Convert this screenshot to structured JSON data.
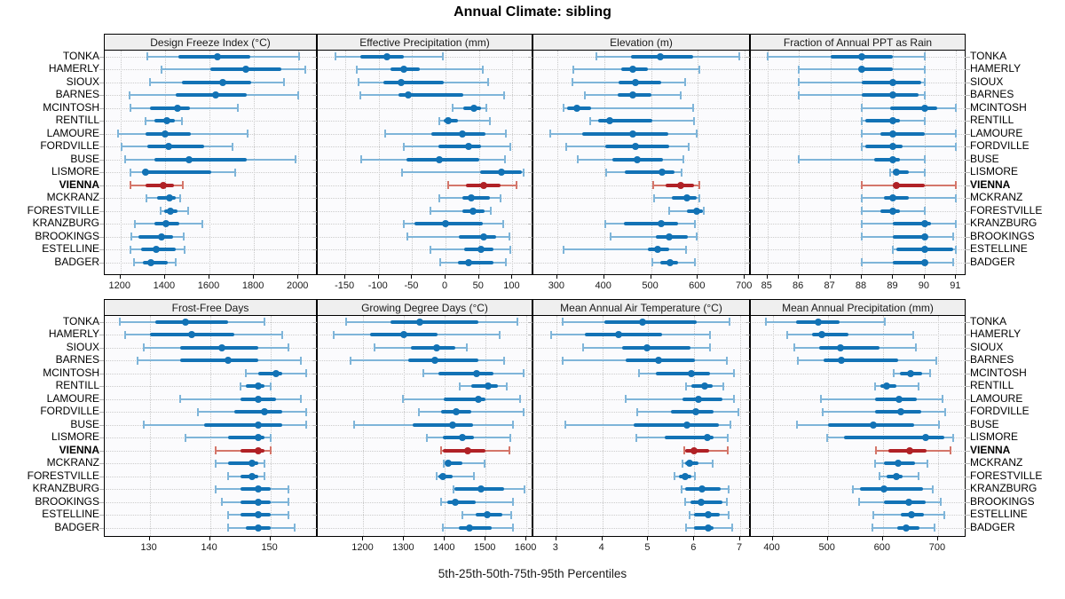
{
  "title": "Annual Climate: sibling",
  "caption": "5th-25th-50th-75th-95th Percentiles",
  "highlight_station": "VIENNA",
  "colors": {
    "blue": "#1272b5",
    "blue_light": "#7fb5d9",
    "red": "#b02126",
    "red_light": "#d4766a",
    "grid": "#c9c9c9",
    "strip_bg": "#efefef",
    "panel_bg": "#fbfbfd",
    "border": "#000000"
  },
  "stations": [
    "TONKA",
    "HAMERLY",
    "SIOUX",
    "BARNES",
    "MCINTOSH",
    "RENTILL",
    "LAMOURE",
    "FORDVILLE",
    "BUSE",
    "LISMORE",
    "VIENNA",
    "MCKRANZ",
    "FORESTVILLE",
    "KRANZBURG",
    "BROOKINGS",
    "ESTELLINE",
    "BADGER"
  ],
  "chart_data": [
    {
      "type": "interval",
      "title": "Design Freeze Index (°C)",
      "grid_row": 0,
      "xlim": [
        1133,
        2083
      ],
      "ticks": [
        1200,
        1400,
        1600,
        1800,
        2000
      ],
      "percentiles": [
        5,
        25,
        50,
        75,
        95
      ],
      "values": [
        [
          1321,
          1459,
          1637,
          1782,
          2005
        ],
        [
          1384,
          1604,
          1762,
          1924,
          2032
        ],
        [
          1332,
          1476,
          1661,
          1788,
          1937
        ],
        [
          1242,
          1450,
          1626,
          1769,
          1999
        ],
        [
          1246,
          1334,
          1457,
          1512,
          1726
        ],
        [
          1314,
          1354,
          1407,
          1446,
          1476
        ],
        [
          1189,
          1314,
          1400,
          1518,
          1772
        ],
        [
          1203,
          1321,
          1417,
          1578,
          1705
        ],
        [
          1222,
          1351,
          1509,
          1769,
          1986
        ],
        [
          1243,
          1295,
          1312,
          1608,
          1717
        ],
        [
          1246,
          1312,
          1391,
          1441,
          1480
        ],
        [
          1315,
          1364,
          1420,
          1450,
          1470
        ],
        [
          1380,
          1397,
          1426,
          1457,
          1503
        ],
        [
          1266,
          1351,
          1404,
          1466,
          1568
        ],
        [
          1250,
          1280,
          1384,
          1437,
          1486
        ],
        [
          1243,
          1292,
          1362,
          1450,
          1490
        ],
        [
          1259,
          1299,
          1338,
          1413,
          1450
        ]
      ]
    },
    {
      "type": "interval",
      "title": "Effective Precipitation (mm)",
      "grid_row": 0,
      "xlim": [
        -190,
        130
      ],
      "ticks": [
        -150,
        -100,
        -50,
        0,
        50,
        100
      ],
      "percentiles": [
        5,
        25,
        50,
        75,
        95
      ],
      "values": [
        [
          -165,
          -127,
          -88,
          -62,
          -4
        ],
        [
          -133,
          -83,
          -63,
          -38,
          55
        ],
        [
          -130,
          -93,
          -67,
          -3,
          64
        ],
        [
          -127,
          -71,
          -56,
          27,
          87
        ],
        [
          10,
          26,
          42,
          53,
          61
        ],
        [
          -9,
          -3,
          4,
          18,
          66
        ],
        [
          -90,
          -21,
          25,
          59,
          90
        ],
        [
          -63,
          -11,
          35,
          53,
          97
        ],
        [
          -126,
          -58,
          -10,
          50,
          89
        ],
        [
          -65,
          52,
          83,
          114,
          117
        ],
        [
          4,
          31,
          57,
          82,
          106
        ],
        [
          -10,
          25,
          39,
          66,
          82
        ],
        [
          -23,
          25,
          41,
          58,
          67
        ],
        [
          -63,
          -47,
          0,
          55,
          86
        ],
        [
          -57,
          20,
          57,
          76,
          95
        ],
        [
          -23,
          28,
          53,
          71,
          97
        ],
        [
          -8,
          18,
          35,
          71,
          90
        ]
      ]
    },
    {
      "type": "interval",
      "title": "Elevation (m)",
      "grid_row": 0,
      "xlim": [
        251,
        711
      ],
      "ticks": [
        300,
        400,
        500,
        600,
        700
      ],
      "percentiles": [
        5,
        25,
        50,
        75,
        95
      ],
      "values": [
        [
          384,
          457,
          520,
          589,
          688
        ],
        [
          334,
          436,
          461,
          494,
          604
        ],
        [
          333,
          431,
          466,
          521,
          572
        ],
        [
          358,
          428,
          462,
          501,
          564
        ],
        [
          314,
          321,
          341,
          373,
          589
        ],
        [
          370,
          387,
          412,
          503,
          592
        ],
        [
          286,
          353,
          462,
          537,
          597
        ],
        [
          320,
          403,
          467,
          539,
          581
        ],
        [
          344,
          417,
          471,
          525,
          569
        ],
        [
          404,
          445,
          523,
          551,
          566
        ],
        [
          504,
          532,
          564,
          592,
          604
        ],
        [
          506,
          545,
          576,
          598,
          603
        ],
        [
          539,
          576,
          597,
          611,
          613
        ],
        [
          402,
          442,
          521,
          558,
          593
        ],
        [
          413,
          511,
          539,
          578,
          598
        ],
        [
          314,
          494,
          514,
          538,
          575
        ],
        [
          503,
          520,
          540,
          558,
          593
        ]
      ]
    },
    {
      "type": "interval",
      "title": "Fraction of Annual PPT as Rain",
      "grid_row": 0,
      "xlim": [
        84.5,
        91.3
      ],
      "ticks": [
        85,
        86,
        87,
        88,
        89,
        90,
        91
      ],
      "percentiles": [
        5,
        25,
        50,
        75,
        95
      ],
      "values": [
        [
          85,
          87,
          88,
          89,
          90
        ],
        [
          86,
          87.9,
          88,
          89,
          90
        ],
        [
          86,
          88,
          89,
          89.9,
          90
        ],
        [
          86,
          88,
          89,
          89.8,
          90
        ],
        [
          88,
          88.9,
          90,
          90.4,
          91
        ],
        [
          88,
          88.1,
          89,
          89.2,
          90
        ],
        [
          88,
          88.6,
          89,
          90,
          91
        ],
        [
          88,
          88.1,
          89,
          89.3,
          91
        ],
        [
          86,
          88.4,
          89,
          89.2,
          90
        ],
        [
          88.9,
          89,
          89.1,
          89.5,
          90
        ],
        [
          88,
          89,
          89.1,
          90,
          91
        ],
        [
          88,
          88.7,
          89,
          89.5,
          91
        ],
        [
          88,
          88.6,
          89,
          89.2,
          90
        ],
        [
          88,
          89,
          90,
          90.2,
          91
        ],
        [
          88,
          89,
          90,
          90.1,
          90.9
        ],
        [
          89,
          89.1,
          90,
          90.9,
          91
        ],
        [
          88,
          89,
          90,
          90.1,
          90.9
        ]
      ]
    },
    {
      "type": "interval",
      "title": "Frost-Free Days",
      "grid_row": 1,
      "xlim": [
        122.7,
        157.7
      ],
      "ticks": [
        130,
        140,
        150
      ],
      "percentiles": [
        5,
        25,
        50,
        75,
        95
      ],
      "values": [
        [
          125,
          131,
          136,
          143,
          149
        ],
        [
          126,
          130,
          137,
          144,
          152
        ],
        [
          129,
          135,
          142,
          148,
          153
        ],
        [
          128,
          135,
          143,
          148,
          155
        ],
        [
          146,
          148,
          151,
          152,
          156
        ],
        [
          145,
          146,
          148,
          149,
          150
        ],
        [
          135,
          145,
          148,
          151,
          155
        ],
        [
          138,
          144,
          149,
          152,
          156
        ],
        [
          129,
          139,
          148,
          152,
          156
        ],
        [
          136,
          143,
          148,
          149,
          150
        ],
        [
          141,
          145,
          148,
          149,
          150
        ],
        [
          141,
          143,
          147,
          148,
          149
        ],
        [
          143,
          145,
          147,
          148,
          149
        ],
        [
          141,
          145,
          148,
          150,
          153
        ],
        [
          142,
          145,
          148,
          150,
          153
        ],
        [
          143,
          145,
          148,
          150,
          153
        ],
        [
          143,
          146,
          148,
          150,
          154
        ]
      ]
    },
    {
      "type": "interval",
      "title": "Growing Degree Days (°C)",
      "grid_row": 1,
      "xlim": [
        1090,
        1615
      ],
      "ticks": [
        1200,
        1300,
        1400,
        1500,
        1600
      ],
      "percentiles": [
        5,
        25,
        50,
        75,
        95
      ],
      "values": [
        [
          1158,
          1266,
          1338,
          1482,
          1578
        ],
        [
          1126,
          1217,
          1299,
          1383,
          1534
        ],
        [
          1227,
          1316,
          1379,
          1425,
          1453
        ],
        [
          1168,
          1310,
          1375,
          1482,
          1545
        ],
        [
          1347,
          1383,
          1477,
          1519,
          1594
        ],
        [
          1436,
          1464,
          1506,
          1530,
          1552
        ],
        [
          1296,
          1397,
          1482,
          1500,
          1585
        ],
        [
          1336,
          1390,
          1428,
          1465,
          1594
        ],
        [
          1178,
          1322,
          1418,
          1469,
          1567
        ],
        [
          1355,
          1396,
          1442,
          1471,
          1561
        ],
        [
          1390,
          1396,
          1455,
          1499,
          1559
        ],
        [
          1397,
          1401,
          1408,
          1442,
          1497
        ],
        [
          1379,
          1385,
          1395,
          1419,
          1471
        ],
        [
          1421,
          1423,
          1489,
          1545,
          1596
        ],
        [
          1390,
          1405,
          1425,
          1475,
          1567
        ],
        [
          1442,
          1475,
          1504,
          1541,
          1563
        ],
        [
          1396,
          1434,
          1460,
          1515,
          1567
        ]
      ]
    },
    {
      "type": "interval",
      "title": "Mean Annual Air Temperature (°C)",
      "grid_row": 1,
      "xlim": [
        2.52,
        7.21
      ],
      "ticks": [
        3,
        4,
        5,
        6,
        7
      ],
      "percentiles": [
        5,
        25,
        50,
        75,
        95
      ],
      "values": [
        [
          3.13,
          4.05,
          4.87,
          6.05,
          6.77
        ],
        [
          2.88,
          3.62,
          4.36,
          5.3,
          6.35
        ],
        [
          3.58,
          4.44,
          4.98,
          5.91,
          6.34
        ],
        [
          3.14,
          4.5,
          5.22,
          6.02,
          6.71
        ],
        [
          4.79,
          5.17,
          5.94,
          6.35,
          6.87
        ],
        [
          5.82,
          5.94,
          6.23,
          6.39,
          6.64
        ],
        [
          4.5,
          5.75,
          6.09,
          6.61,
          6.87
        ],
        [
          4.76,
          5.49,
          6.04,
          6.42,
          6.96
        ],
        [
          3.19,
          4.69,
          5.84,
          6.53,
          6.79
        ],
        [
          4.73,
          5.36,
          6.28,
          6.41,
          6.73
        ],
        [
          5.78,
          5.8,
          6.0,
          6.32,
          6.73
        ],
        [
          5.75,
          5.8,
          5.89,
          6.1,
          6.39
        ],
        [
          5.56,
          5.66,
          5.81,
          5.94,
          6.02
        ],
        [
          5.72,
          5.8,
          6.16,
          6.58,
          6.74
        ],
        [
          5.81,
          5.91,
          6.14,
          6.61,
          6.71
        ],
        [
          5.89,
          6.0,
          6.31,
          6.55,
          6.74
        ],
        [
          5.83,
          6.0,
          6.31,
          6.42,
          6.83
        ]
      ]
    },
    {
      "type": "interval",
      "title": "Mean Annual Precipitation (mm)",
      "grid_row": 1,
      "xlim": [
        362,
        750
      ],
      "ticks": [
        400,
        500,
        600,
        700
      ],
      "percentiles": [
        5,
        25,
        50,
        75,
        95
      ],
      "values": [
        [
          388,
          443,
          483,
          521,
          604
        ],
        [
          427,
          471,
          489,
          537,
          655
        ],
        [
          439,
          484,
          523,
          594,
          660
        ],
        [
          446,
          493,
          525,
          628,
          697
        ],
        [
          619,
          631,
          650,
          671,
          685
        ],
        [
          585,
          596,
          607,
          624,
          665
        ],
        [
          487,
          585,
          629,
          662,
          708
        ],
        [
          490,
          585,
          633,
          670,
          713
        ],
        [
          444,
          500,
          582,
          656,
          702
        ],
        [
          499,
          529,
          677,
          712,
          728
        ],
        [
          588,
          610,
          648,
          679,
          722
        ],
        [
          585,
          602,
          627,
          658,
          681
        ],
        [
          594,
          606,
          625,
          636,
          664
        ],
        [
          545,
          559,
          602,
          672,
          691
        ],
        [
          557,
          602,
          647,
          677,
          705
        ],
        [
          582,
          633,
          652,
          675,
          712
        ],
        [
          581,
          626,
          642,
          666,
          693
        ]
      ]
    }
  ]
}
